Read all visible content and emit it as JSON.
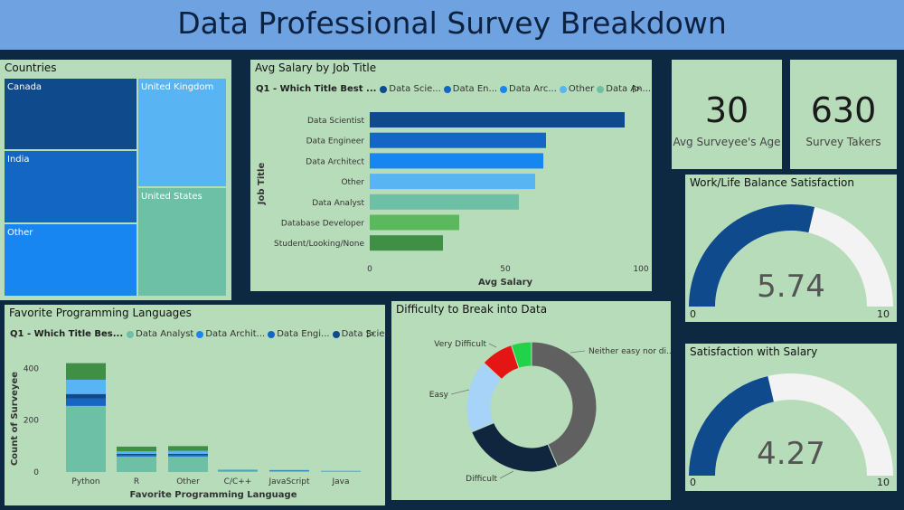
{
  "title": "Data Professional Survey Breakdown",
  "countries": {
    "title": "Countries",
    "tiles": [
      {
        "label": "Canada",
        "color": "#0e4a8c"
      },
      {
        "label": "India",
        "color": "#1466c4"
      },
      {
        "label": "Other",
        "color": "#1886f0"
      },
      {
        "label": "United Kingdom",
        "color": "#58b4f2"
      },
      {
        "label": "United States",
        "color": "#6dbfa6"
      }
    ]
  },
  "avg_salary": {
    "title": "Avg Salary by Job Title",
    "legend_title": "Q1 - Which Title Best ...",
    "legend": [
      {
        "name": "Data Scie...",
        "color": "#0e4a8c"
      },
      {
        "name": "Data En...",
        "color": "#1466c4"
      },
      {
        "name": "Data Arc...",
        "color": "#1886f0"
      },
      {
        "name": "Other",
        "color": "#58b4f2"
      },
      {
        "name": "Data An...",
        "color": "#6dbfa6"
      }
    ],
    "play_icon": "play-icon"
  },
  "languages": {
    "title": "Favorite Programming Languages",
    "legend_title": "Q1 - Which Title Bes...",
    "legend": [
      {
        "name": "Data Analyst",
        "color": "#6dbfa6"
      },
      {
        "name": "Data Archit...",
        "color": "#1886f0"
      },
      {
        "name": "Data Engi...",
        "color": "#1466c4"
      },
      {
        "name": "Data Scie...",
        "color": "#0e4a8c"
      }
    ],
    "play_icon": "play-icon"
  },
  "difficulty": {
    "title": "Difficulty to Break into Data"
  },
  "kpis": [
    {
      "value": "30",
      "label": "Avg Surveyee's Age"
    },
    {
      "value": "630",
      "label": "Survey Takers"
    }
  ],
  "gauges": [
    {
      "title": "Work/Life Balance Satisfaction",
      "value": 5.74,
      "value_text": "5.74",
      "min": 0,
      "max": 10,
      "min_label": "0",
      "max_label": "10"
    },
    {
      "title": "Satisfaction with Salary",
      "value": 4.27,
      "value_text": "4.27",
      "min": 0,
      "max": 10,
      "min_label": "0",
      "max_label": "10"
    }
  ],
  "chart_data": [
    {
      "type": "bar",
      "orientation": "horizontal",
      "title": "Avg Salary by Job Title",
      "ylabel": "Job Title",
      "xlabel": "Avg Salary",
      "xlim": [
        0,
        100
      ],
      "xticks": [
        "0",
        "50",
        "100"
      ],
      "categories": [
        "Data Scientist",
        "Data Engineer",
        "Data Architect",
        "Other",
        "Data Analyst",
        "Database Developer",
        "Student/Looking/None"
      ],
      "values": [
        94,
        65,
        64,
        61,
        55,
        33,
        27
      ],
      "colors": [
        "#0e4a8c",
        "#1466c4",
        "#1886f0",
        "#58b4f2",
        "#6dbfa6",
        "#5cb85c",
        "#3f8f45"
      ]
    },
    {
      "type": "bar",
      "stacked": true,
      "title": "Favorite Programming Languages",
      "xlabel": "Favorite Programming Language",
      "ylabel": "Count of Surveyee",
      "ylim": [
        0,
        450
      ],
      "yticks": [
        "0",
        "200",
        "400"
      ],
      "categories": [
        "Python",
        "R",
        "Other",
        "C/C++",
        "JavaScript",
        "Java"
      ],
      "series": [
        {
          "name": "Data Analyst",
          "color": "#6dbfa6",
          "values": [
            255,
            60,
            60,
            5,
            4,
            3
          ]
        },
        {
          "name": "Data Archit...",
          "color": "#1886f0",
          "values": [
            0,
            0,
            0,
            1,
            1,
            1
          ]
        },
        {
          "name": "Data Engi...",
          "color": "#1466c4",
          "values": [
            28,
            6,
            6,
            1,
            1,
            0
          ]
        },
        {
          "name": "Data Scie...",
          "color": "#0e4a8c",
          "values": [
            18,
            4,
            4,
            1,
            1,
            0
          ]
        },
        {
          "color": "#58b4f2",
          "values": [
            55,
            10,
            12,
            1,
            1,
            1
          ]
        },
        {
          "color": "#3f8f45",
          "values": [
            64,
            18,
            18,
            0,
            0,
            0
          ]
        }
      ]
    },
    {
      "type": "pie",
      "donut": true,
      "title": "Difficulty to Break into Data",
      "categories": [
        "Neither easy nor di...",
        "Difficult",
        "Easy",
        "Very Difficult",
        ""
      ],
      "values": [
        43,
        25,
        18,
        8,
        5
      ],
      "colors": [
        "#606060",
        "#10263f",
        "#a6d3f7",
        "#e51515",
        "#22d34a"
      ]
    }
  ]
}
